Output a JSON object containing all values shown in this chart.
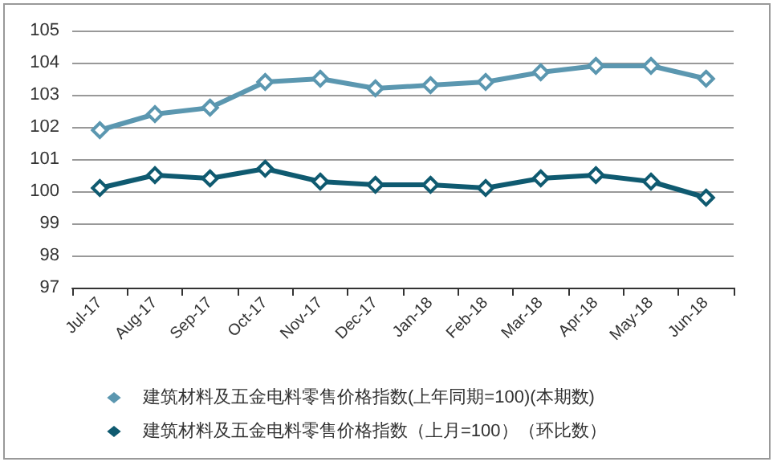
{
  "chart_data": {
    "type": "line",
    "categories": [
      "Jul-17",
      "Aug-17",
      "Sep-17",
      "Oct-17",
      "Nov-17",
      "Dec-17",
      "Jan-18",
      "Feb-18",
      "Mar-18",
      "Apr-18",
      "May-18",
      "Jun-18"
    ],
    "series": [
      {
        "name": "建筑材料及五金电料零售价格指数(上年同期=100)(本期数)",
        "color": "#5b97b0",
        "values": [
          101.9,
          102.4,
          102.6,
          103.4,
          103.5,
          103.2,
          103.3,
          103.4,
          103.7,
          103.9,
          103.9,
          103.5
        ]
      },
      {
        "name": "建筑材料及五金电料零售价格指数（上月=100）（环比数）",
        "color": "#0f5a70",
        "values": [
          100.1,
          100.5,
          100.4,
          100.7,
          100.3,
          100.2,
          100.2,
          100.1,
          100.4,
          100.5,
          100.3,
          99.8
        ]
      }
    ],
    "ylim": [
      97,
      105
    ],
    "yticks": [
      97,
      98,
      99,
      100,
      101,
      102,
      103,
      104,
      105
    ],
    "grid": "y",
    "legend": "bottom",
    "marker": "diamond",
    "line_style": "solid"
  }
}
